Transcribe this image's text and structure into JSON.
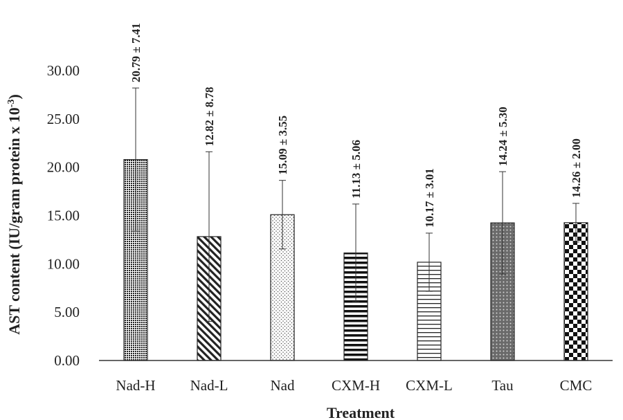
{
  "chart_data": {
    "type": "bar",
    "title": "",
    "xlabel": "Treatment",
    "ylabel": "AST content (IU/gram protein x 10",
    "ylabel_superscript": "-3",
    "ylabel_suffix": ")",
    "ylim": [
      0,
      30
    ],
    "yticks": [
      "0.00",
      "5.00",
      "10.00",
      "15.00",
      "20.00",
      "25.00",
      "30.00"
    ],
    "ytick_values": [
      0,
      5,
      10,
      15,
      20,
      25,
      30
    ],
    "categories": [
      "Nad-H",
      "Nad-L",
      "Nad",
      "CXM-H",
      "CXM-L",
      "Tau",
      "CMC"
    ],
    "values": [
      20.79,
      12.82,
      15.09,
      11.13,
      10.17,
      14.24,
      14.26
    ],
    "errors": [
      7.41,
      8.78,
      3.55,
      5.06,
      3.01,
      5.3,
      2.0
    ],
    "data_labels": [
      "20.79 ± 7.41",
      "12.82 ± 8.78",
      "15.09 ± 3.55",
      "11.13 ± 5.06",
      "10.17 ± 3.01",
      "14.24 ± 5.30",
      "14.26 ± 2.00"
    ],
    "patterns": [
      "dense-dots",
      "diagonal-stripes",
      "sparse-dots",
      "thick-horizontal",
      "thin-horizontal",
      "diamond-grid",
      "checkerboard"
    ],
    "grid": false,
    "legend": "none"
  },
  "colors": {
    "ink": "#222222",
    "background": "#ffffff"
  }
}
